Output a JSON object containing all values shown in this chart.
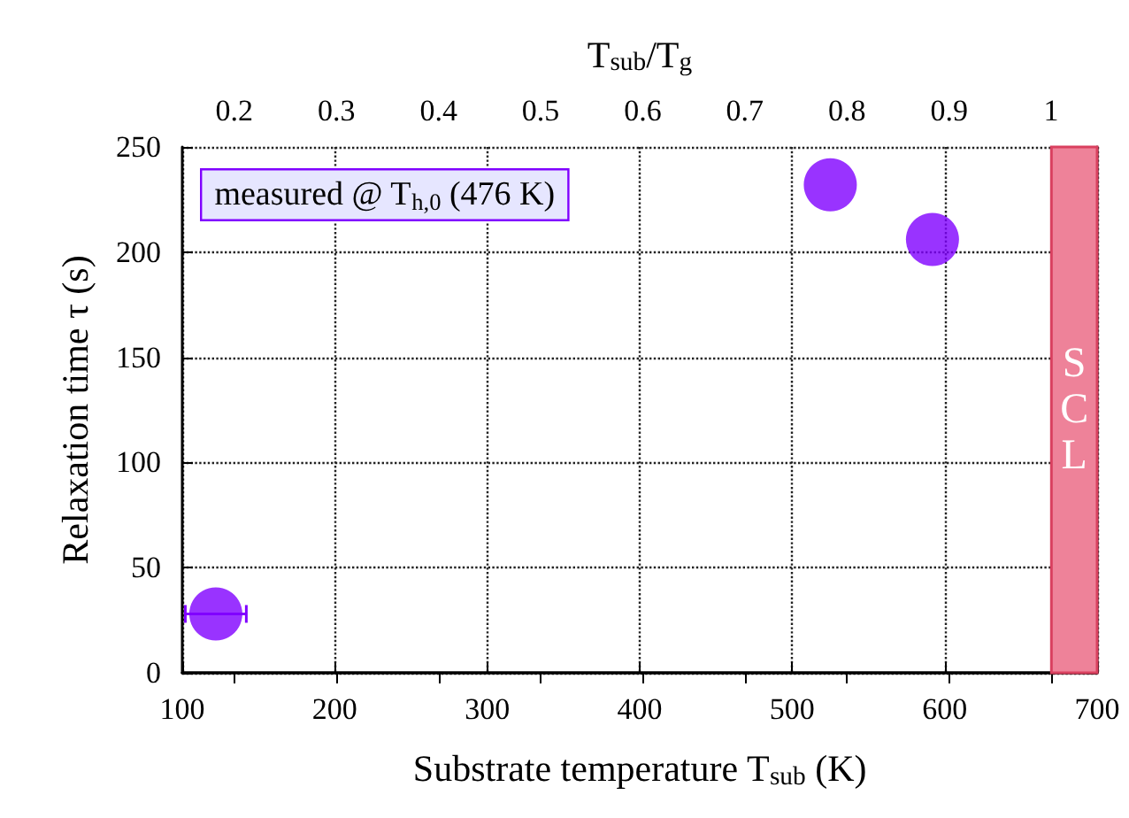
{
  "chart_data": {
    "type": "scatter",
    "xlabel": "Substrate temperature T$_{sub}$ (K)",
    "ylabel": "Relaxation time τ (s)",
    "x2label": "T$_{sub}$/T$_{g}$",
    "x": [
      122,
      525,
      592
    ],
    "series": [
      {
        "color": "#8000ff",
        "values": [
          28,
          232,
          206
        ],
        "xerrors": [
          20,
          null,
          null
        ]
      }
    ],
    "xlim": [
      100,
      700
    ],
    "xticks": [
      100,
      200,
      300,
      400,
      500,
      600,
      700
    ],
    "ylim": [
      0,
      250
    ],
    "yticks": [
      0,
      50,
      100,
      150,
      200,
      250
    ],
    "x2lim": [
      0.149,
      1.045
    ],
    "x2ticks": [
      0.2,
      0.3,
      0.4,
      0.5,
      0.6,
      0.7,
      0.8,
      0.9,
      1
    ],
    "bands": [
      {
        "axis": "x",
        "from": 670,
        "to": 700,
        "label": "SCL",
        "color": "#ee8299"
      }
    ],
    "annotations": [
      "measured @ T$_{h,0}$ (476 K)"
    ],
    "grid": true,
    "marker": "circle"
  }
}
